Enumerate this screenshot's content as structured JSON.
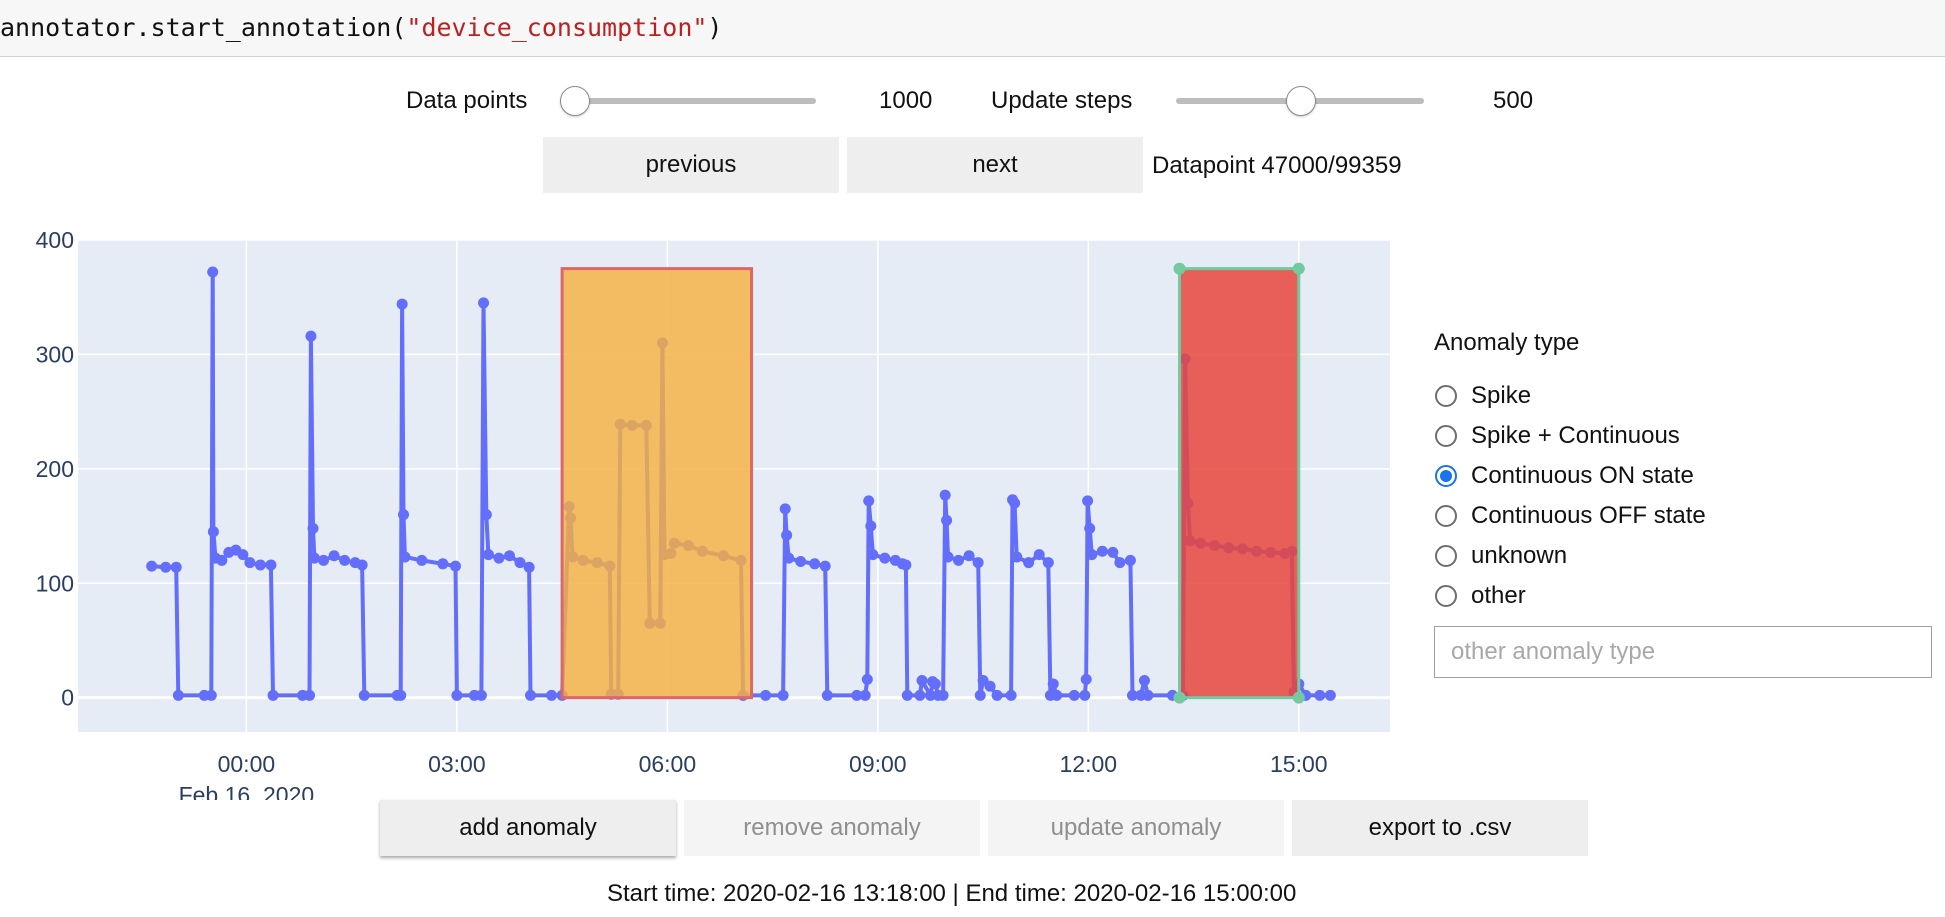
{
  "code": {
    "prefix": "annotator.start_annotation(",
    "string_arg": "\"device_consumption\"",
    "suffix": ")"
  },
  "controls": {
    "data_points": {
      "label": "Data points",
      "value": "1000",
      "level": 0.0
    },
    "update_steps": {
      "label": "Update steps",
      "value": "500",
      "level": 0.5
    },
    "previous_label": "previous",
    "next_label": "next",
    "datapoint_status": "Datapoint 47000/99359"
  },
  "chart_data": {
    "type": "line",
    "x_unit": "hours since 2020-02-16 00:00",
    "xlim": [
      -2.4,
      16.3
    ],
    "ylim": [
      -30,
      400
    ],
    "y_ticks": [
      0,
      100,
      200,
      300,
      400
    ],
    "x_ticks": [
      {
        "x": 0,
        "label": "00:00"
      },
      {
        "x": 3,
        "label": "03:00"
      },
      {
        "x": 6,
        "label": "06:00"
      },
      {
        "x": 9,
        "label": "09:00"
      },
      {
        "x": 12,
        "label": "12:00"
      },
      {
        "x": 15,
        "label": "15:00"
      }
    ],
    "date_label": "Feb 16, 2020",
    "grid": true,
    "series": [
      {
        "color": "#636efa",
        "points": [
          [
            -1.35,
            115
          ],
          [
            -1.15,
            114
          ],
          [
            -1.0,
            114
          ],
          [
            -0.97,
            2
          ],
          [
            -0.6,
            2
          ],
          [
            -0.5,
            2
          ],
          [
            -0.48,
            372
          ],
          [
            -0.47,
            145
          ],
          [
            -0.44,
            122
          ],
          [
            -0.35,
            120
          ],
          [
            -0.25,
            127
          ],
          [
            -0.15,
            129
          ],
          [
            -0.05,
            125
          ],
          [
            0.05,
            118
          ],
          [
            0.2,
            116
          ],
          [
            0.35,
            116
          ],
          [
            0.38,
            2
          ],
          [
            0.8,
            2
          ],
          [
            0.9,
            2
          ],
          [
            0.92,
            316
          ],
          [
            0.95,
            148
          ],
          [
            0.97,
            122
          ],
          [
            1.1,
            120
          ],
          [
            1.25,
            124
          ],
          [
            1.4,
            120
          ],
          [
            1.55,
            118
          ],
          [
            1.65,
            116
          ],
          [
            1.68,
            2
          ],
          [
            2.15,
            2
          ],
          [
            2.2,
            2
          ],
          [
            2.22,
            344
          ],
          [
            2.24,
            160
          ],
          [
            2.26,
            123
          ],
          [
            2.5,
            120
          ],
          [
            2.8,
            117
          ],
          [
            2.98,
            115
          ],
          [
            3.0,
            2
          ],
          [
            3.25,
            2
          ],
          [
            3.35,
            2
          ],
          [
            3.38,
            345
          ],
          [
            3.42,
            160
          ],
          [
            3.45,
            125
          ],
          [
            3.6,
            122
          ],
          [
            3.75,
            124
          ],
          [
            3.9,
            118
          ],
          [
            4.03,
            114
          ],
          [
            4.05,
            2
          ],
          [
            4.35,
            2
          ],
          [
            4.5,
            2
          ],
          [
            4.6,
            167
          ],
          [
            4.62,
            157
          ],
          [
            4.65,
            123
          ],
          [
            4.8,
            120
          ],
          [
            5.0,
            118
          ],
          [
            5.18,
            115
          ],
          [
            5.2,
            3
          ],
          [
            5.3,
            3
          ],
          [
            5.33,
            239
          ],
          [
            5.5,
            238
          ],
          [
            5.7,
            238
          ],
          [
            5.75,
            65
          ],
          [
            5.9,
            65
          ],
          [
            5.93,
            310
          ],
          [
            5.96,
            125
          ],
          [
            6.05,
            126
          ],
          [
            6.1,
            135
          ],
          [
            6.3,
            133
          ],
          [
            6.5,
            128
          ],
          [
            6.8,
            124
          ],
          [
            7.05,
            120
          ],
          [
            7.08,
            2
          ],
          [
            7.4,
            2
          ],
          [
            7.65,
            2
          ],
          [
            7.68,
            165
          ],
          [
            7.7,
            142
          ],
          [
            7.73,
            122
          ],
          [
            7.9,
            119
          ],
          [
            8.1,
            117
          ],
          [
            8.25,
            115
          ],
          [
            8.28,
            2
          ],
          [
            8.7,
            2
          ],
          [
            8.82,
            2
          ],
          [
            8.85,
            16
          ],
          [
            8.87,
            172
          ],
          [
            8.9,
            150
          ],
          [
            8.93,
            125
          ],
          [
            9.1,
            122
          ],
          [
            9.25,
            120
          ],
          [
            9.35,
            117
          ],
          [
            9.4,
            116
          ],
          [
            9.42,
            2
          ],
          [
            9.6,
            2
          ],
          [
            9.63,
            15
          ],
          [
            9.75,
            2
          ],
          [
            9.78,
            14
          ],
          [
            9.82,
            12
          ],
          [
            9.86,
            2
          ],
          [
            9.93,
            2
          ],
          [
            9.96,
            177
          ],
          [
            9.98,
            155
          ],
          [
            10.0,
            123
          ],
          [
            10.15,
            120
          ],
          [
            10.3,
            124
          ],
          [
            10.43,
            118
          ],
          [
            10.46,
            2
          ],
          [
            10.5,
            15
          ],
          [
            10.6,
            10
          ],
          [
            10.7,
            2
          ],
          [
            10.9,
            2
          ],
          [
            10.92,
            173
          ],
          [
            10.95,
            170
          ],
          [
            10.98,
            123
          ],
          [
            11.15,
            118
          ],
          [
            11.3,
            125
          ],
          [
            11.43,
            118
          ],
          [
            11.46,
            2
          ],
          [
            11.5,
            12
          ],
          [
            11.55,
            2
          ],
          [
            11.8,
            2
          ],
          [
            11.95,
            2
          ],
          [
            11.97,
            16
          ],
          [
            11.99,
            172
          ],
          [
            12.02,
            148
          ],
          [
            12.05,
            125
          ],
          [
            12.2,
            128
          ],
          [
            12.35,
            127
          ],
          [
            12.45,
            118
          ],
          [
            12.6,
            120
          ],
          [
            12.63,
            2
          ],
          [
            12.75,
            2
          ],
          [
            12.8,
            15
          ],
          [
            12.85,
            2
          ],
          [
            13.2,
            2
          ],
          [
            13.35,
            2
          ],
          [
            13.38,
            296
          ],
          [
            13.42,
            170
          ],
          [
            13.45,
            137
          ],
          [
            13.6,
            135
          ],
          [
            13.8,
            133
          ],
          [
            14.0,
            131
          ],
          [
            14.2,
            130
          ],
          [
            14.4,
            128
          ],
          [
            14.6,
            127
          ],
          [
            14.8,
            126
          ],
          [
            14.9,
            128
          ],
          [
            14.93,
            5
          ],
          [
            15.0,
            12
          ],
          [
            15.1,
            2
          ],
          [
            15.3,
            2
          ],
          [
            15.45,
            2
          ]
        ]
      }
    ],
    "anomalies": [
      {
        "start": 4.5,
        "end": 7.2,
        "top": 375,
        "fill": "#f5b041",
        "border": "#e06666",
        "selected": false
      },
      {
        "start": 13.3,
        "end": 15.0,
        "top": 375,
        "fill": "#e8463c",
        "border": "#74c9a0",
        "selected": true
      }
    ]
  },
  "anomaly_panel": {
    "title": "Anomaly type",
    "options": [
      {
        "label": "Spike",
        "checked": false
      },
      {
        "label": "Spike + Continuous",
        "checked": false
      },
      {
        "label": "Continuous ON state",
        "checked": true
      },
      {
        "label": "Continuous OFF state",
        "checked": false
      },
      {
        "label": "unknown",
        "checked": false
      },
      {
        "label": "other",
        "checked": false
      }
    ],
    "other_placeholder": "other anomaly type",
    "other_value": ""
  },
  "actions": {
    "add": "add anomaly",
    "remove": "remove anomaly",
    "update": "update anomaly",
    "export": "export to .csv"
  },
  "status": {
    "range_text": "Start time: 2020-02-16 13:18:00 | End time: 2020-02-16 15:00:00"
  }
}
